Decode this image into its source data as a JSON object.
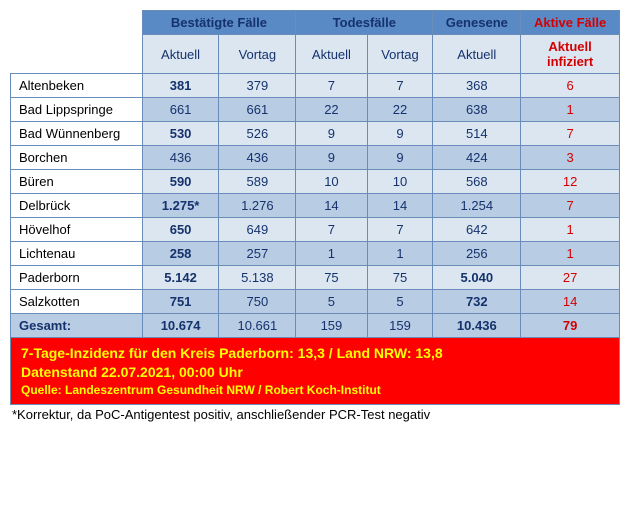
{
  "headers": {
    "group1": "Bestätigte Fälle",
    "group2": "Todesfälle",
    "group3": "Genesene",
    "group4": "Aktive Fälle",
    "sub_current": "Aktuell",
    "sub_prev": "Vortag",
    "sub_active": "Aktuell\ninfiziert"
  },
  "rows": [
    {
      "name": "Altenbeken",
      "conf_cur": "381",
      "conf_cur_bold": true,
      "conf_prev": "379",
      "death_cur": "7",
      "death_prev": "7",
      "rec": "368",
      "rec_bold": false,
      "active": "6"
    },
    {
      "name": "Bad Lippspringe",
      "conf_cur": "661",
      "conf_cur_bold": false,
      "conf_prev": "661",
      "death_cur": "22",
      "death_prev": "22",
      "rec": "638",
      "rec_bold": false,
      "active": "1"
    },
    {
      "name": "Bad Wünnenberg",
      "conf_cur": "530",
      "conf_cur_bold": true,
      "conf_prev": "526",
      "death_cur": "9",
      "death_prev": "9",
      "rec": "514",
      "rec_bold": false,
      "active": "7"
    },
    {
      "name": "Borchen",
      "conf_cur": "436",
      "conf_cur_bold": false,
      "conf_prev": "436",
      "death_cur": "9",
      "death_prev": "9",
      "rec": "424",
      "rec_bold": false,
      "active": "3"
    },
    {
      "name": "Büren",
      "conf_cur": "590",
      "conf_cur_bold": true,
      "conf_prev": "589",
      "death_cur": "10",
      "death_prev": "10",
      "rec": "568",
      "rec_bold": false,
      "active": "12"
    },
    {
      "name": "Delbrück",
      "conf_cur": "1.275*",
      "conf_cur_bold": true,
      "conf_prev": "1.276",
      "death_cur": "14",
      "death_prev": "14",
      "rec": "1.254",
      "rec_bold": false,
      "active": "7"
    },
    {
      "name": "Hövelhof",
      "conf_cur": "650",
      "conf_cur_bold": true,
      "conf_prev": "649",
      "death_cur": "7",
      "death_prev": "7",
      "rec": "642",
      "rec_bold": false,
      "active": "1"
    },
    {
      "name": "Lichtenau",
      "conf_cur": "258",
      "conf_cur_bold": true,
      "conf_prev": "257",
      "death_cur": "1",
      "death_prev": "1",
      "rec": "256",
      "rec_bold": false,
      "active": "1"
    },
    {
      "name": "Paderborn",
      "conf_cur": "5.142",
      "conf_cur_bold": true,
      "conf_prev": "5.138",
      "death_cur": "75",
      "death_prev": "75",
      "rec": "5.040",
      "rec_bold": true,
      "active": "27"
    },
    {
      "name": "Salzkotten",
      "conf_cur": "751",
      "conf_cur_bold": true,
      "conf_prev": "750",
      "death_cur": "5",
      "death_prev": "5",
      "rec": "732",
      "rec_bold": true,
      "active": "14"
    }
  ],
  "total": {
    "name": "Gesamt:",
    "conf_cur": "10.674",
    "conf_prev": "10.661",
    "death_cur": "159",
    "death_prev": "159",
    "rec": "10.436",
    "active": "79"
  },
  "redbox": {
    "line1": "7-Tage-Inzidenz für den Kreis Paderborn: 13,3 / Land NRW: 13,8",
    "line2": "Datenstand 22.07.2021, 00:00 Uhr",
    "line3": "Quelle: Landeszentrum Gesundheit NRW / Robert Koch-Institut"
  },
  "footnote": "*Korrektur, da PoC-Antigentest positiv, anschließender PCR-Test negativ",
  "colors": {
    "header_bg": "#5a8ac6",
    "header_fg": "#15326c",
    "odd_bg": "#dbe6f1",
    "even_bg": "#b8cce4",
    "active_fg": "#d40000",
    "border": "#6a8cb8",
    "redbox_bg": "#ff0000",
    "redbox_fg": "#ffff00"
  }
}
